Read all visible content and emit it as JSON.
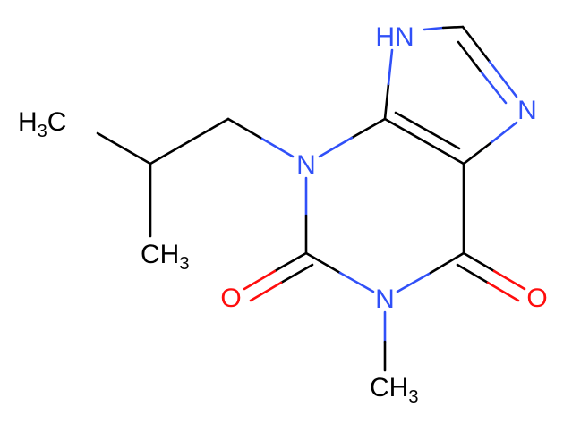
{
  "atoms": [
    {
      "parts": [
        {
          "text": "H"
        },
        {
          "text": "3",
          "subscript": true
        },
        {
          "text": "C"
        }
      ]
    },
    {
      "parts": [
        {
          "text": "N"
        }
      ]
    },
    {
      "parts": [
        {
          "text": "CH"
        },
        {
          "text": "3",
          "subscript": true
        }
      ]
    },
    {
      "parts": [
        {
          "text": "O"
        }
      ]
    },
    {
      "parts": [
        {
          "text": "N"
        }
      ]
    },
    {
      "parts": [
        {
          "text": "CH"
        },
        {
          "text": "3",
          "subscript": true
        }
      ]
    },
    {
      "parts": [
        {
          "text": "O"
        }
      ]
    },
    {
      "parts": [
        {
          "text": "N"
        }
      ]
    },
    {
      "parts": [
        {
          "text": "HN"
        }
      ]
    }
  ]
}
